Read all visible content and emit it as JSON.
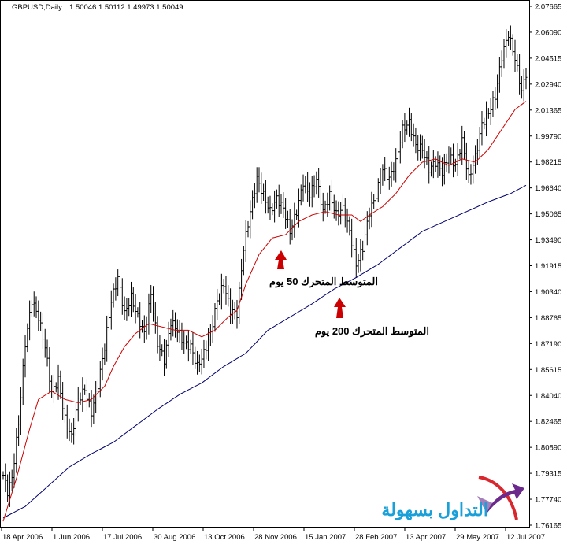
{
  "header": {
    "symbol_timeframe": "GBPUSD,Daily",
    "ohlc": "1.50046 1.50112 1.49973 1.50049"
  },
  "colors": {
    "price_bars": "#000000",
    "ma50": "#cc0000",
    "ma200": "#00006e",
    "annotation_arrow": "#cc0000",
    "logo_text": "#1aa0d8",
    "logo_purple": "#6b2a8c",
    "logo_red": "#d9272e"
  },
  "annotations": {
    "ma50_label": "المتوسط المتحرك 50 يوم",
    "ma200_label": "المتوسط المتحرك 200 يوم"
  },
  "logo": {
    "text": "التداول بسهولة",
    "icon": "upward-arrow-logo-icon"
  },
  "chart_data": {
    "type": "ohlc",
    "price_axis": {
      "ticks": [
        "2.07665",
        "2.06090",
        "2.04515",
        "2.02940",
        "2.01365",
        "1.99790",
        "1.98215",
        "1.96640",
        "1.95065",
        "1.93490",
        "1.91915",
        "1.90340",
        "1.88765",
        "1.87190",
        "1.85615",
        "1.84040",
        "1.82465",
        "1.80890",
        "1.79315",
        "1.77740",
        "1.76165"
      ],
      "ylim": [
        1.76165,
        2.07665
      ]
    },
    "time_axis": {
      "ticks": [
        "18 Apr 2006",
        "1 Jun 2006",
        "17 Jul 2006",
        "30 Aug 2006",
        "13 Oct 2006",
        "28 Nov 2006",
        "15 Jan 2007",
        "28 Feb 2007",
        "13 Apr 2007",
        "29 May 2007",
        "12 Jul 2007"
      ]
    },
    "series": [
      {
        "kind": "close",
        "points": [
          [
            0,
            1.792
          ],
          [
            2,
            1.782
          ],
          [
            4,
            1.79
          ],
          [
            7,
            1.824
          ],
          [
            10,
            1.872
          ],
          [
            13,
            1.898
          ],
          [
            16,
            1.888
          ],
          [
            19,
            1.87
          ],
          [
            22,
            1.842
          ],
          [
            25,
            1.85
          ],
          [
            28,
            1.826
          ],
          [
            31,
            1.815
          ],
          [
            34,
            1.838
          ],
          [
            37,
            1.844
          ],
          [
            40,
            1.83
          ],
          [
            43,
            1.847
          ],
          [
            46,
            1.87
          ],
          [
            49,
            1.898
          ],
          [
            52,
            1.912
          ],
          [
            55,
            1.89
          ],
          [
            58,
            1.9
          ],
          [
            61,
            1.888
          ],
          [
            64,
            1.878
          ],
          [
            67,
            1.902
          ],
          [
            70,
            1.872
          ],
          [
            73,
            1.862
          ],
          [
            76,
            1.885
          ],
          [
            79,
            1.88
          ],
          [
            82,
            1.872
          ],
          [
            85,
            1.87
          ],
          [
            88,
            1.858
          ],
          [
            91,
            1.866
          ],
          [
            94,
            1.878
          ],
          [
            97,
            1.898
          ],
          [
            100,
            1.908
          ],
          [
            103,
            1.892
          ],
          [
            106,
            1.89
          ],
          [
            109,
            1.93
          ],
          [
            112,
            1.952
          ],
          [
            115,
            1.972
          ],
          [
            118,
            1.962
          ],
          [
            121,
            1.952
          ],
          [
            124,
            1.96
          ],
          [
            127,
            1.954
          ],
          [
            130,
            1.94
          ],
          [
            133,
            1.952
          ],
          [
            136,
            1.97
          ],
          [
            139,
            1.962
          ],
          [
            142,
            1.972
          ],
          [
            145,
            1.952
          ],
          [
            148,
            1.962
          ],
          [
            151,
            1.95
          ],
          [
            154,
            1.954
          ],
          [
            157,
            1.94
          ],
          [
            160,
            1.92
          ],
          [
            163,
            1.93
          ],
          [
            166,
            1.952
          ],
          [
            169,
            1.962
          ],
          [
            172,
            1.978
          ],
          [
            175,
            1.972
          ],
          [
            178,
            1.982
          ],
          [
            181,
            2.002
          ],
          [
            184,
            2.006
          ],
          [
            187,
            1.992
          ],
          [
            190,
            1.99
          ],
          [
            193,
            1.978
          ],
          [
            196,
            1.982
          ],
          [
            199,
            1.976
          ],
          [
            202,
            1.986
          ],
          [
            205,
            1.98
          ],
          [
            208,
            1.995
          ],
          [
            211,
            1.972
          ],
          [
            214,
            1.985
          ],
          [
            217,
            2.005
          ],
          [
            220,
            2.012
          ],
          [
            223,
            2.022
          ],
          [
            226,
            2.046
          ],
          [
            229,
            2.06
          ],
          [
            232,
            2.045
          ],
          [
            235,
            2.025
          ],
          [
            237,
            2.036
          ]
        ]
      },
      {
        "kind": "ma",
        "period": 50,
        "label": "المتوسط المتحرك 50 يوم",
        "points": [
          [
            0,
            1.764
          ],
          [
            6,
            1.79
          ],
          [
            12,
            1.82
          ],
          [
            16,
            1.838
          ],
          [
            22,
            1.843
          ],
          [
            28,
            1.838
          ],
          [
            34,
            1.836
          ],
          [
            40,
            1.838
          ],
          [
            46,
            1.846
          ],
          [
            50,
            1.858
          ],
          [
            55,
            1.87
          ],
          [
            60,
            1.878
          ],
          [
            66,
            1.884
          ],
          [
            72,
            1.882
          ],
          [
            78,
            1.88
          ],
          [
            84,
            1.88
          ],
          [
            90,
            1.876
          ],
          [
            96,
            1.88
          ],
          [
            102,
            1.888
          ],
          [
            106,
            1.892
          ],
          [
            110,
            1.908
          ],
          [
            116,
            1.926
          ],
          [
            122,
            1.936
          ],
          [
            128,
            1.938
          ],
          [
            134,
            1.946
          ],
          [
            140,
            1.95
          ],
          [
            146,
            1.952
          ],
          [
            152,
            1.95
          ],
          [
            158,
            1.95
          ],
          [
            162,
            1.946
          ],
          [
            166,
            1.95
          ],
          [
            172,
            1.955
          ],
          [
            178,
            1.963
          ],
          [
            184,
            1.974
          ],
          [
            190,
            1.982
          ],
          [
            196,
            1.984
          ],
          [
            202,
            1.98
          ],
          [
            208,
            1.984
          ],
          [
            214,
            1.982
          ],
          [
            220,
            1.99
          ],
          [
            226,
            2.002
          ],
          [
            232,
            2.014
          ],
          [
            237,
            2.019
          ]
        ]
      },
      {
        "kind": "ma",
        "period": 200,
        "label": "المتوسط المتحرك 200 يوم",
        "points": [
          [
            0,
            1.766
          ],
          [
            10,
            1.773
          ],
          [
            20,
            1.785
          ],
          [
            30,
            1.797
          ],
          [
            40,
            1.805
          ],
          [
            50,
            1.812
          ],
          [
            60,
            1.822
          ],
          [
            70,
            1.832
          ],
          [
            80,
            1.841
          ],
          [
            90,
            1.848
          ],
          [
            100,
            1.858
          ],
          [
            110,
            1.866
          ],
          [
            120,
            1.88
          ],
          [
            130,
            1.888
          ],
          [
            140,
            1.896
          ],
          [
            150,
            1.905
          ],
          [
            160,
            1.912
          ],
          [
            170,
            1.92
          ],
          [
            180,
            1.93
          ],
          [
            190,
            1.94
          ],
          [
            200,
            1.946
          ],
          [
            210,
            1.952
          ],
          [
            220,
            1.958
          ],
          [
            230,
            1.963
          ],
          [
            237,
            1.968
          ]
        ]
      }
    ]
  }
}
